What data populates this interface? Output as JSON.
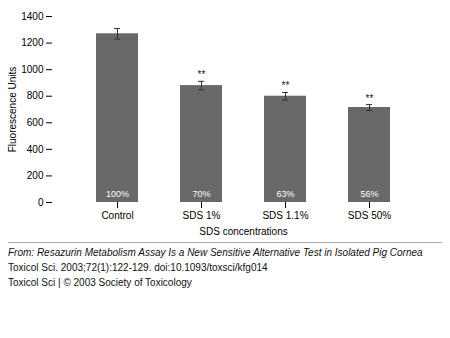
{
  "chart_data": {
    "type": "bar",
    "categories": [
      "Control",
      "SDS 1%",
      "SDS 1.1%",
      "SDS 50%"
    ],
    "values": [
      1270,
      880,
      800,
      715
    ],
    "errors": [
      40,
      32,
      28,
      22
    ],
    "bar_labels": [
      "100%",
      "70%",
      "63%",
      "56%"
    ],
    "significance": [
      null,
      "**",
      "**",
      "**"
    ],
    "color": "#696969",
    "xlabel": "SDS concentrations",
    "ylabel": "Fluorescence Units",
    "ylim": [
      0,
      1400
    ],
    "yticks": [
      0,
      200,
      400,
      600,
      800,
      1000,
      1200,
      1400
    ],
    "grid": false,
    "caption": [
      "From: Resazurin Metabolism Assay Is a New Sensitive Alternative Test in Isolated Pig Cornea",
      "Toxicol Sci. 2003;72(1):122-129. doi:10.1093/toxsci/kfg014",
      "Toxicol Sci | © 2003 Society of Toxicology"
    ]
  }
}
